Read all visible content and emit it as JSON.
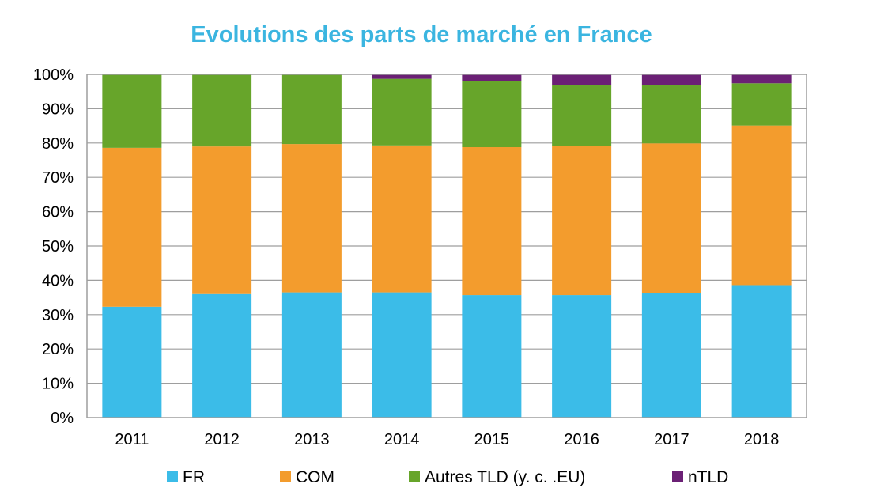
{
  "chart_data": {
    "type": "bar",
    "stacked": true,
    "title": "Evolutions des parts de marché en France",
    "xlabel": "",
    "ylabel": "",
    "categories": [
      "2011",
      "2012",
      "2013",
      "2014",
      "2015",
      "2016",
      "2017",
      "2018"
    ],
    "y_ticks": [
      "0%",
      "10%",
      "20%",
      "30%",
      "40%",
      "50%",
      "60%",
      "70%",
      "80%",
      "90%",
      "100%"
    ],
    "ylim": [
      0,
      100
    ],
    "grid": true,
    "legend_position": "bottom",
    "series": [
      {
        "name": "FR",
        "color": "#3BBCE8",
        "values": [
          32.3,
          36,
          36.5,
          36.5,
          35.7,
          35.7,
          36.4,
          38.6
        ]
      },
      {
        "name": "COM",
        "color": "#F39C2D",
        "values": [
          46.3,
          43,
          43.2,
          42.8,
          43.1,
          43.5,
          43.5,
          46.5
        ]
      },
      {
        "name": "Autres TLD (y. c. .EU)",
        "color": "#67A52A",
        "values": [
          21.4,
          21,
          20.3,
          19.4,
          19.2,
          17.8,
          16.9,
          12.3
        ]
      },
      {
        "name": "nTLD",
        "color": "#6B2075",
        "values": [
          0,
          0,
          0,
          1.3,
          2.0,
          3.0,
          3.2,
          2.6
        ]
      }
    ]
  }
}
